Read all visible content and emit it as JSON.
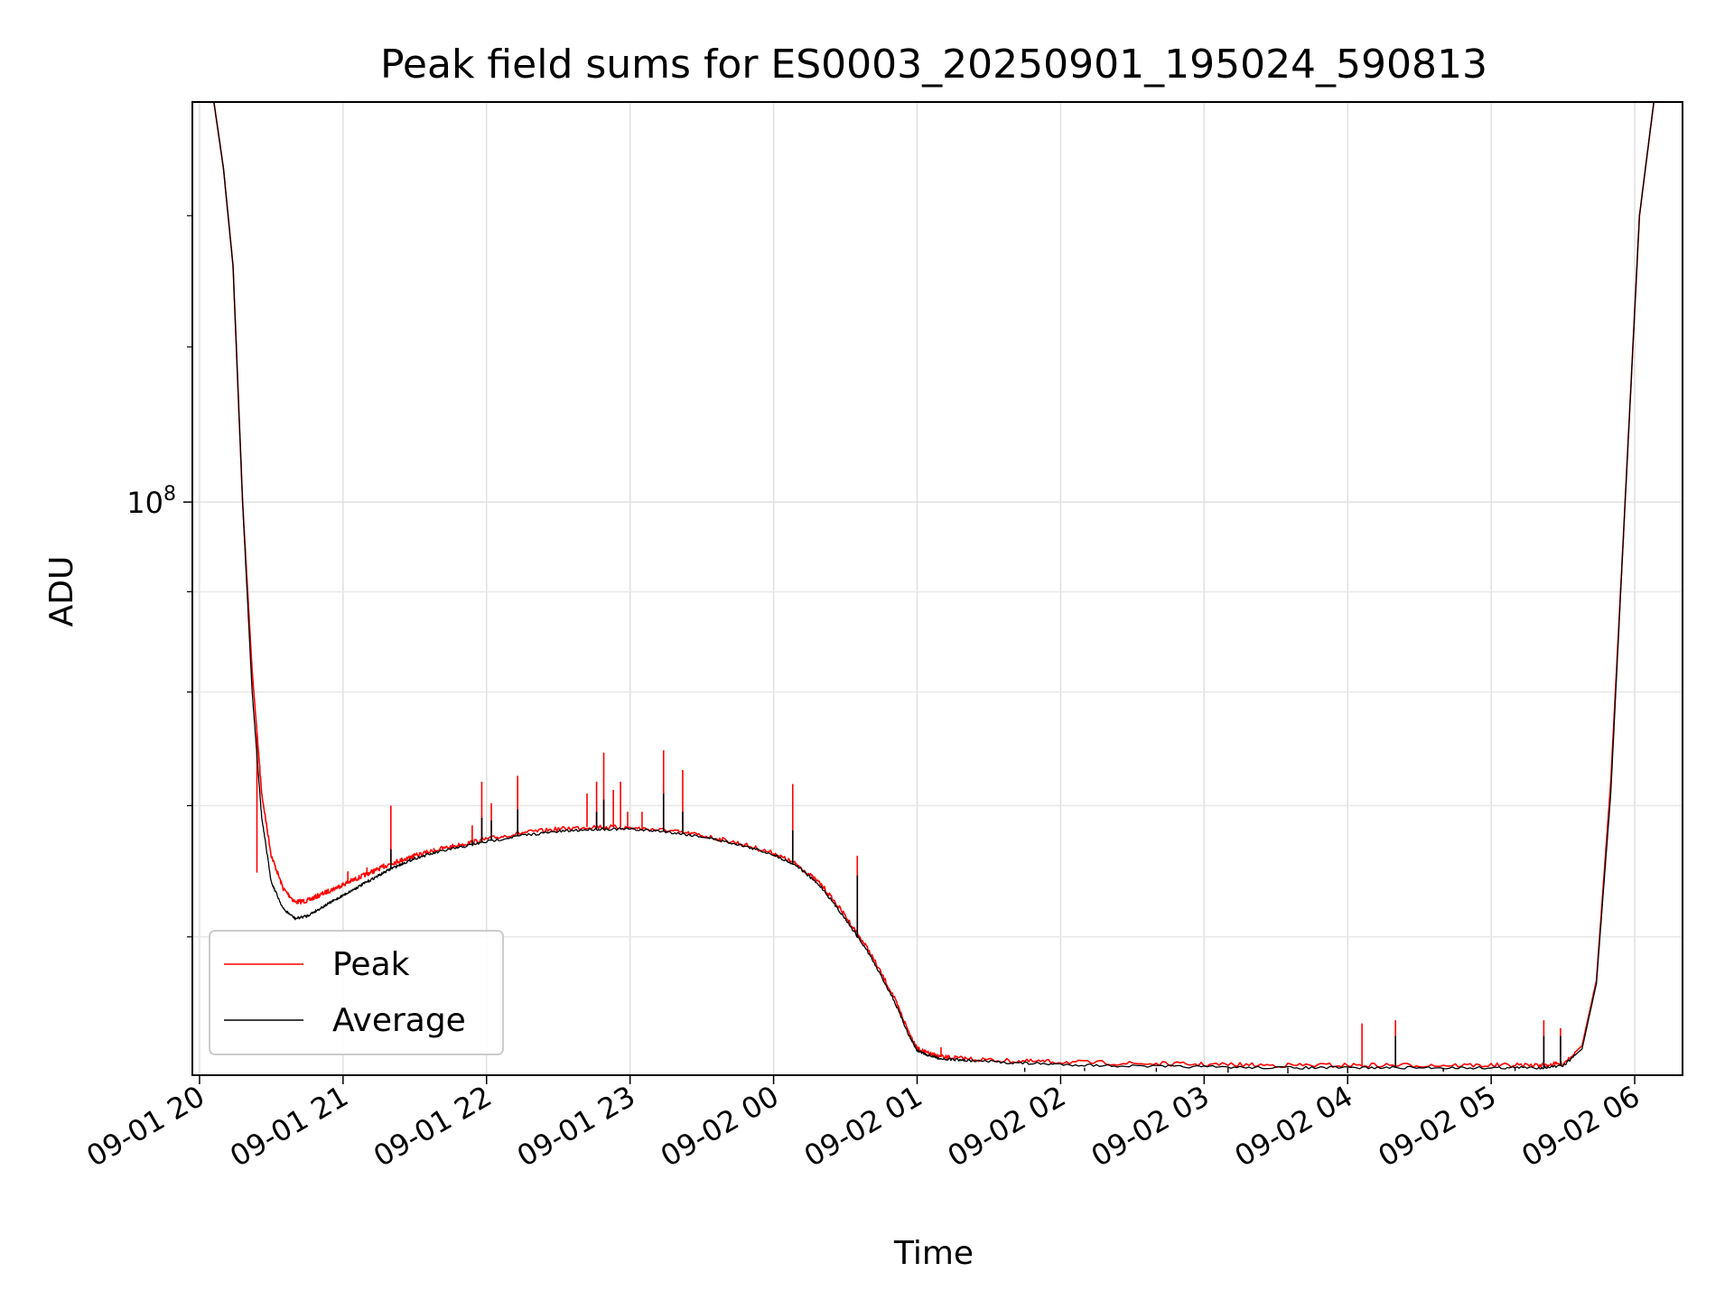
{
  "chart_data": {
    "type": "line",
    "title": "Peak field sums for ES0003_20250901_195024_590813",
    "xlabel": "Time",
    "ylabel": "ADU",
    "yscale": "log",
    "grid": true,
    "legend_placement": "lower-left",
    "xlim": [
      "2025-09-01 19:57",
      "2025-09-02 06:20"
    ],
    "ylim": [
      51000000.0,
      160000000.0
    ],
    "x_tick_labels": [
      "09-01 20",
      "09-01 21",
      "09-01 22",
      "09-01 23",
      "09-02 00",
      "09-02 01",
      "09-02 02",
      "09-02 03",
      "09-02 04",
      "09-02 05",
      "09-02 06"
    ],
    "y_tick_labels": [
      {
        "base": "10",
        "exp": "8",
        "value": 100000000
      }
    ],
    "series": [
      {
        "name": "Peak",
        "color": "#ff0000",
        "x": [
          "2025-09-01 20:06",
          "2025-09-01 20:10",
          "2025-09-01 20:14",
          "2025-09-01 20:18",
          "2025-09-01 20:22",
          "2025-09-01 20:26",
          "2025-09-01 20:30",
          "2025-09-01 20:35",
          "2025-09-01 20:40",
          "2025-09-01 20:45",
          "2025-09-01 20:50",
          "2025-09-01 20:55",
          "2025-09-01 21:00",
          "2025-09-01 21:05",
          "2025-09-01 21:10",
          "2025-09-01 21:15",
          "2025-09-01 21:20",
          "2025-09-01 21:25",
          "2025-09-01 21:30",
          "2025-09-01 21:40",
          "2025-09-01 21:50",
          "2025-09-01 22:00",
          "2025-09-01 22:15",
          "2025-09-01 22:30",
          "2025-09-01 22:45",
          "2025-09-01 23:00",
          "2025-09-01 23:15",
          "2025-09-01 23:30",
          "2025-09-01 23:45",
          "2025-09-02 00:00",
          "2025-09-02 00:10",
          "2025-09-02 00:20",
          "2025-09-02 00:30",
          "2025-09-02 00:40",
          "2025-09-02 00:50",
          "2025-09-02 00:57",
          "2025-09-02 01:00",
          "2025-09-02 01:05",
          "2025-09-02 01:10",
          "2025-09-02 01:20",
          "2025-09-02 01:40",
          "2025-09-02 02:00",
          "2025-09-02 02:30",
          "2025-09-02 03:00",
          "2025-09-02 03:30",
          "2025-09-02 04:00",
          "2025-09-02 04:30",
          "2025-09-02 05:00",
          "2025-09-02 05:20",
          "2025-09-02 05:30",
          "2025-09-02 05:38",
          "2025-09-02 05:44",
          "2025-09-02 05:50",
          "2025-09-02 05:56",
          "2025-09-02 06:02",
          "2025-09-02 06:08"
        ],
        "y": [
          160000000,
          148000000,
          132000000,
          100000000,
          82000000,
          71000000,
          66000000,
          63500000,
          62500000,
          62600000,
          63000000,
          63400000,
          63800000,
          64200000,
          64600000,
          65000000,
          65400000,
          65700000,
          66000000,
          66500000,
          66900000,
          67300000,
          67800000,
          68100000,
          68300000,
          68200000,
          68000000,
          67600000,
          67000000,
          66200000,
          65300000,
          63800000,
          61500000,
          59000000,
          56000000,
          53500000,
          52600000,
          52300000,
          52100000,
          52000000,
          51850000,
          51800000,
          51700000,
          51650000,
          51600000,
          51600000,
          51600000,
          51600000,
          51600000,
          51700000,
          52800000,
          57000000,
          72000000,
          100000000,
          140000000,
          160000000
        ],
        "spikes": [
          [
            "2025-09-01 20:24",
            64700000
          ],
          [
            "2025-09-01 21:02",
            64800000
          ],
          [
            "2025-09-01 21:10",
            65100000
          ],
          [
            "2025-09-01 21:17",
            65400000
          ],
          [
            "2025-09-01 21:20",
            70000000
          ],
          [
            "2025-09-01 21:38",
            66600000
          ],
          [
            "2025-09-01 21:54",
            68400000
          ],
          [
            "2025-09-01 21:58",
            72000000
          ],
          [
            "2025-09-01 22:02",
            70200000
          ],
          [
            "2025-09-01 22:13",
            72500000
          ],
          [
            "2025-09-01 22:42",
            71000000
          ],
          [
            "2025-09-01 22:46",
            72000000
          ],
          [
            "2025-09-01 22:49",
            74500000
          ],
          [
            "2025-09-01 22:53",
            71300000
          ],
          [
            "2025-09-01 22:56",
            72000000
          ],
          [
            "2025-09-01 22:59",
            69500000
          ],
          [
            "2025-09-01 23:05",
            69500000
          ],
          [
            "2025-09-01 23:14",
            74700000
          ],
          [
            "2025-09-01 23:22",
            73000000
          ],
          [
            "2025-09-02 00:08",
            71800000
          ],
          [
            "2025-09-02 00:35",
            66000000
          ],
          [
            "2025-09-02 01:10",
            52700000
          ],
          [
            "2025-09-02 04:06",
            54200000
          ],
          [
            "2025-09-02 04:20",
            54400000
          ],
          [
            "2025-09-02 05:22",
            54400000
          ],
          [
            "2025-09-02 05:29",
            53900000
          ]
        ]
      },
      {
        "name": "Average",
        "color": "#000000",
        "x": [
          "2025-09-01 20:06",
          "2025-09-01 20:10",
          "2025-09-01 20:14",
          "2025-09-01 20:18",
          "2025-09-01 20:22",
          "2025-09-01 20:26",
          "2025-09-01 20:30",
          "2025-09-01 20:35",
          "2025-09-01 20:40",
          "2025-09-01 20:45",
          "2025-09-01 20:50",
          "2025-09-01 20:55",
          "2025-09-01 21:00",
          "2025-09-01 21:05",
          "2025-09-01 21:10",
          "2025-09-01 21:15",
          "2025-09-01 21:20",
          "2025-09-01 21:25",
          "2025-09-01 21:30",
          "2025-09-01 21:40",
          "2025-09-01 21:50",
          "2025-09-01 22:00",
          "2025-09-01 22:15",
          "2025-09-01 22:30",
          "2025-09-01 22:45",
          "2025-09-01 23:00",
          "2025-09-01 23:15",
          "2025-09-01 23:30",
          "2025-09-01 23:45",
          "2025-09-02 00:00",
          "2025-09-02 00:10",
          "2025-09-02 00:20",
          "2025-09-02 00:30",
          "2025-09-02 00:40",
          "2025-09-02 00:50",
          "2025-09-02 00:57",
          "2025-09-02 01:00",
          "2025-09-02 01:05",
          "2025-09-02 01:10",
          "2025-09-02 01:20",
          "2025-09-02 01:40",
          "2025-09-02 02:00",
          "2025-09-02 02:30",
          "2025-09-02 03:00",
          "2025-09-02 03:30",
          "2025-09-02 04:00",
          "2025-09-02 04:30",
          "2025-09-02 05:00",
          "2025-09-02 05:20",
          "2025-09-02 05:30",
          "2025-09-02 05:38",
          "2025-09-02 05:44",
          "2025-09-02 05:50",
          "2025-09-02 05:56",
          "2025-09-02 06:02",
          "2025-09-02 06:08"
        ],
        "y": [
          160000000,
          148000000,
          132000000,
          100000000,
          80000000,
          69000000,
          64000000,
          62000000,
          61300000,
          61500000,
          62000000,
          62500000,
          63000000,
          63500000,
          64000000,
          64500000,
          65000000,
          65400000,
          65800000,
          66300000,
          66700000,
          67100000,
          67600000,
          67900000,
          68100000,
          68100000,
          67900000,
          67500000,
          66900000,
          66100000,
          65200000,
          63600000,
          61300000,
          58800000,
          55800000,
          53300000,
          52500000,
          52200000,
          52000000,
          51900000,
          51750000,
          51650000,
          51550000,
          51500000,
          51450000,
          51450000,
          51450000,
          51450000,
          51450000,
          51550000,
          52600000,
          56800000,
          71000000,
          100000000,
          140000000,
          160000000
        ],
        "spikes": [
          [
            "2025-09-01 21:20",
            66500000
          ],
          [
            "2025-09-01 21:54",
            67200000
          ],
          [
            "2025-09-01 21:58",
            69000000
          ],
          [
            "2025-09-01 22:02",
            68800000
          ],
          [
            "2025-09-01 22:13",
            69700000
          ],
          [
            "2025-09-01 22:46",
            69500000
          ],
          [
            "2025-09-01 22:49",
            70500000
          ],
          [
            "2025-09-01 23:14",
            71000000
          ],
          [
            "2025-09-01 23:22",
            69500000
          ],
          [
            "2025-09-02 00:08",
            68000000
          ],
          [
            "2025-09-02 00:35",
            64500000
          ],
          [
            "2025-09-02 04:20",
            53400000
          ],
          [
            "2025-09-02 05:22",
            53400000
          ],
          [
            "2025-09-02 05:29",
            53400000
          ]
        ],
        "dips": [
          [
            "2025-09-02 01:45",
            51200000
          ],
          [
            "2025-09-02 02:10",
            51250000
          ],
          [
            "2025-09-02 02:40",
            51200000
          ],
          [
            "2025-09-02 03:10",
            51150000
          ],
          [
            "2025-09-02 03:35",
            51100000
          ],
          [
            "2025-09-02 04:00",
            51120000
          ],
          [
            "2025-09-02 04:40",
            51200000
          ],
          [
            "2025-09-02 05:10",
            51250000
          ]
        ]
      }
    ]
  }
}
